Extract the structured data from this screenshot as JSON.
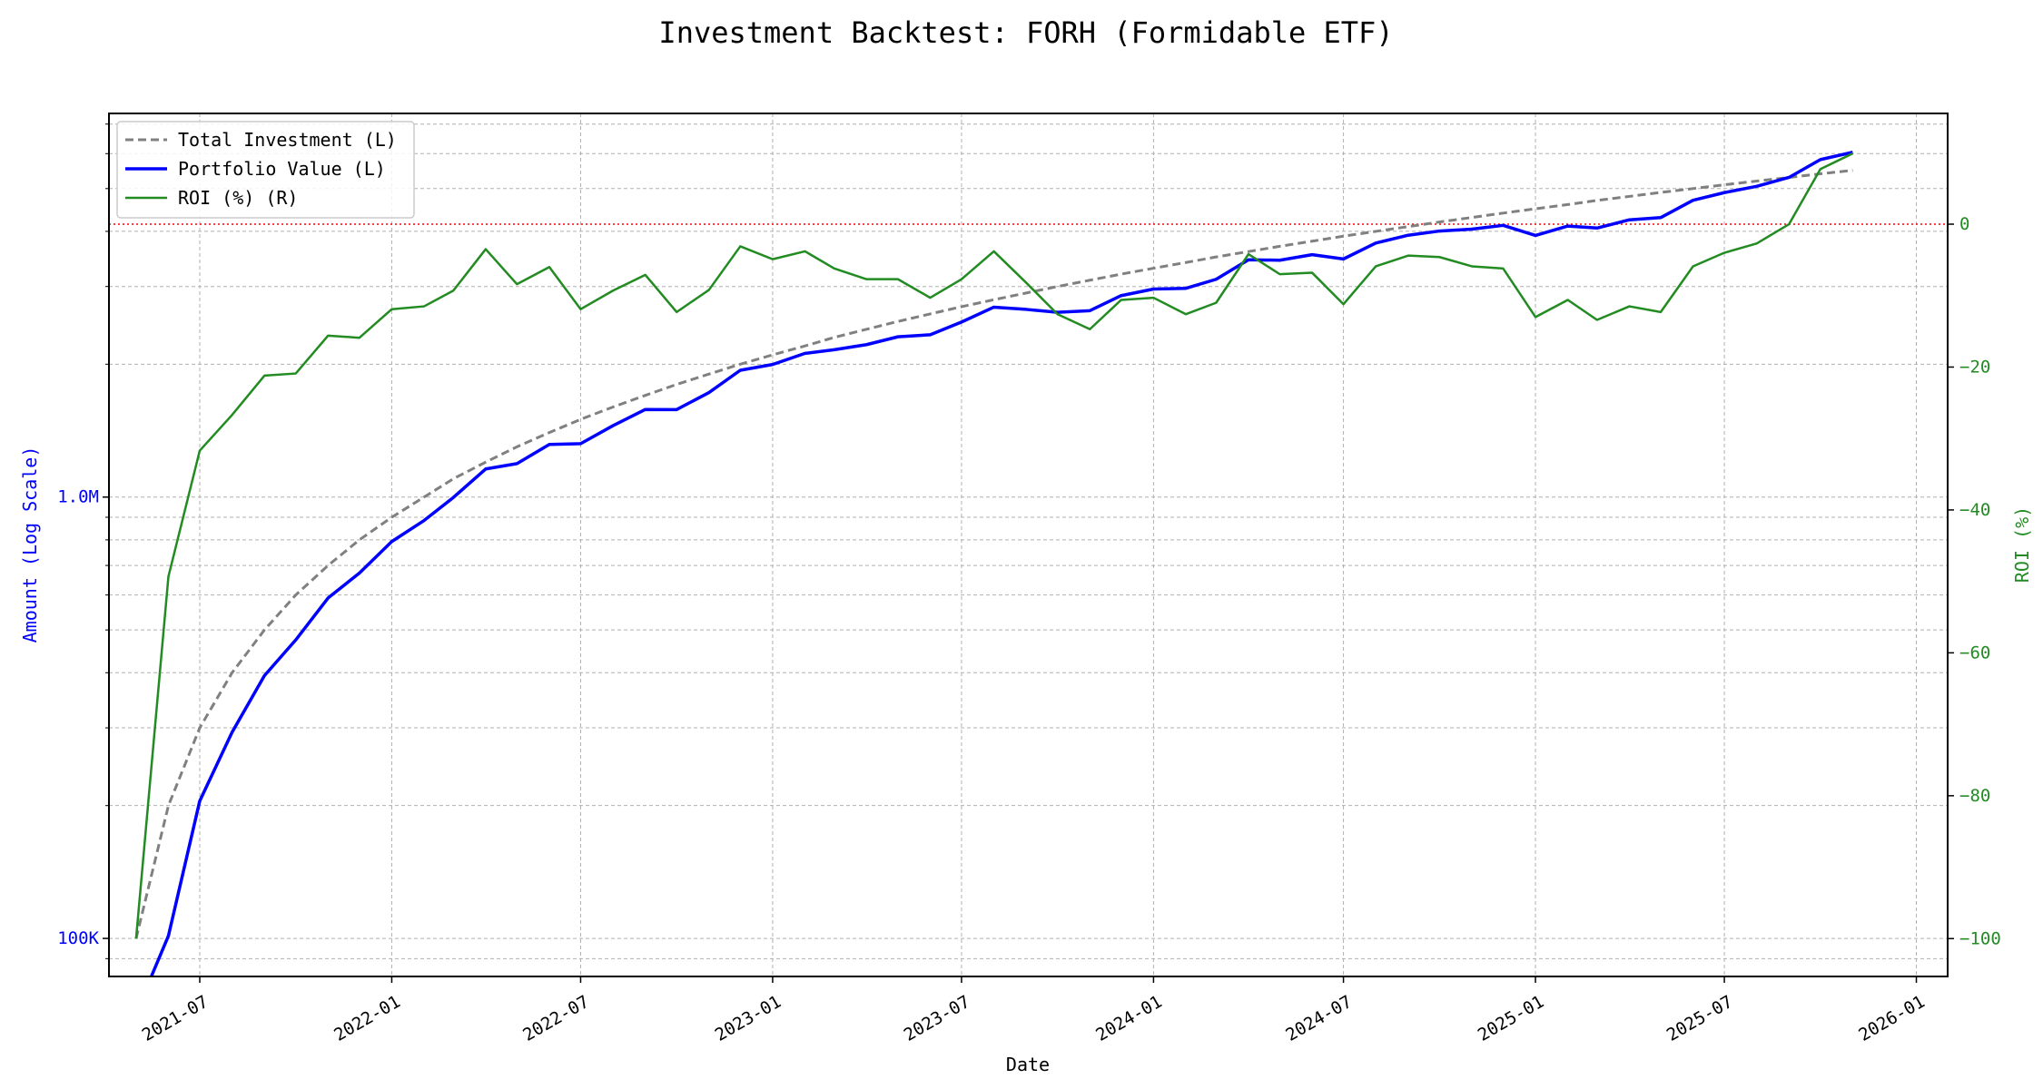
{
  "chart_data": {
    "type": "line",
    "title": "Investment Backtest: FORH (Formidable ETF)",
    "xlabel": "Date",
    "ylabel_left": "Amount (Log Scale)",
    "ylabel_right": "ROI (%)",
    "left_scale": "log",
    "left_ylim": [
      82000,
      7400000
    ],
    "right_ylim": [
      -105.3,
      15.5
    ],
    "xlim": [
      "2021-04-05",
      "2026-01-31"
    ],
    "x_ticks": [
      "2021-07",
      "2022-01",
      "2022-07",
      "2023-01",
      "2023-07",
      "2024-01",
      "2024-07",
      "2025-01",
      "2025-07",
      "2026-01"
    ],
    "left_ticks": [
      {
        "value": 100000,
        "label": "100K"
      },
      {
        "value": 1000000,
        "label": "1.0M"
      }
    ],
    "right_ticks": [
      {
        "value": 0,
        "label": "0"
      },
      {
        "value": -20,
        "label": "−20"
      },
      {
        "value": -40,
        "label": "−40"
      },
      {
        "value": -60,
        "label": "−60"
      },
      {
        "value": -80,
        "label": "−80"
      },
      {
        "value": -100,
        "label": "−100"
      }
    ],
    "grid": true,
    "legend_position": "top-left",
    "reference_line": {
      "axis": "right",
      "value": 0,
      "color": "#ff0000",
      "style": "dotted"
    },
    "x": [
      "2021-05",
      "2021-06",
      "2021-07",
      "2021-08",
      "2021-09",
      "2021-10",
      "2021-11",
      "2021-12",
      "2022-01",
      "2022-02",
      "2022-03",
      "2022-04",
      "2022-05",
      "2022-06",
      "2022-07",
      "2022-08",
      "2022-09",
      "2022-10",
      "2022-11",
      "2022-12",
      "2023-01",
      "2023-02",
      "2023-03",
      "2023-04",
      "2023-05",
      "2023-06",
      "2023-07",
      "2023-08",
      "2023-09",
      "2023-10",
      "2023-11",
      "2023-12",
      "2024-01",
      "2024-02",
      "2024-03",
      "2024-04",
      "2024-05",
      "2024-06",
      "2024-07",
      "2024-08",
      "2024-09",
      "2024-10",
      "2024-11",
      "2024-12",
      "2025-01",
      "2025-02",
      "2025-03",
      "2025-04",
      "2025-05",
      "2025-06",
      "2025-07",
      "2025-08",
      "2025-09",
      "2025-10",
      "2025-11"
    ],
    "series": [
      {
        "name": "Total Investment (L)",
        "axis": "left",
        "color": "#808080",
        "style": "dashed",
        "values": [
          100000,
          200000,
          300000,
          400000,
          500000,
          600000,
          700000,
          800000,
          900000,
          1000000,
          1100000,
          1200000,
          1300000,
          1400000,
          1500000,
          1600000,
          1700000,
          1800000,
          1900000,
          2000000,
          2100000,
          2200000,
          2300000,
          2400000,
          2500000,
          2600000,
          2700000,
          2800000,
          2900000,
          3000000,
          3100000,
          3200000,
          3300000,
          3400000,
          3500000,
          3600000,
          3700000,
          3800000,
          3900000,
          4000000,
          4100000,
          4200000,
          4300000,
          4400000,
          4500000,
          4600000,
          4700000,
          4800000,
          4900000,
          5000000,
          5100000,
          5200000,
          5300000,
          5400000,
          5500000
        ]
      },
      {
        "name": "Portfolio Value (L)",
        "axis": "left",
        "color": "#0000ff",
        "style": "solid",
        "values": [
          0,
          101400,
          204900,
          293200,
          394000,
          474600,
          590800,
          672800,
          792900,
          885000,
          997700,
          1158000,
          1190800,
          1316000,
          1321500,
          1451200,
          1579300,
          1578600,
          1725200,
          1938000,
          1997100,
          2116400,
          2157400,
          2215200,
          2307500,
          2332200,
          2492100,
          2693600,
          2662200,
          2622000,
          2644300,
          2860800,
          2960100,
          2971600,
          3115000,
          3448800,
          3441000,
          3541600,
          3463200,
          3764000,
          3919600,
          4006800,
          4046300,
          4127200,
          3915000,
          4112400,
          4070200,
          4248000,
          4297300,
          4705000,
          4896000,
          5059600,
          5300000,
          5815800,
          6044500
        ]
      },
      {
        "name": "ROI (%) (R)",
        "axis": "right",
        "color": "#228b22",
        "style": "solid",
        "values": [
          -100,
          -49.3,
          -31.7,
          -26.7,
          -21.2,
          -20.9,
          -15.6,
          -15.9,
          -11.9,
          -11.5,
          -9.3,
          -3.5,
          -8.4,
          -6.0,
          -11.9,
          -9.3,
          -7.1,
          -12.3,
          -9.2,
          -3.1,
          -4.9,
          -3.8,
          -6.2,
          -7.7,
          -7.7,
          -10.3,
          -7.7,
          -3.8,
          -8.2,
          -12.6,
          -14.7,
          -10.6,
          -10.3,
          -12.6,
          -11.0,
          -4.2,
          -7.0,
          -6.8,
          -11.2,
          -5.9,
          -4.4,
          -4.6,
          -5.9,
          -6.2,
          -13.0,
          -10.6,
          -13.4,
          -11.5,
          -12.3,
          -5.9,
          -4.0,
          -2.7,
          0,
          7.7,
          9.9
        ]
      }
    ]
  }
}
